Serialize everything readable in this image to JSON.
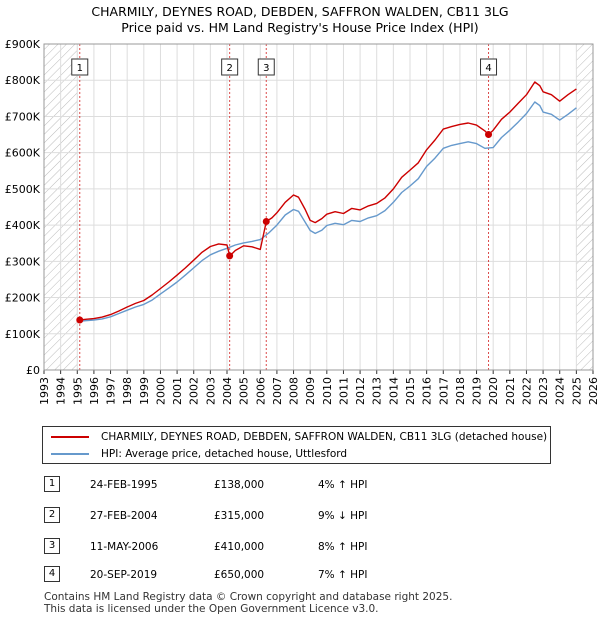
{
  "title_line1": "CHARMILY, DEYNES ROAD, DEBDEN, SAFFRON WALDEN, CB11 3LG",
  "title_line2": "Price paid vs. HM Land Registry's House Price Index (HPI)",
  "chart_data": {
    "type": "line",
    "xlim": [
      1993,
      2026
    ],
    "ylim": [
      0,
      900000
    ],
    "x_ticks": [
      "1993",
      "1994",
      "1995",
      "1996",
      "1997",
      "1998",
      "1999",
      "2000",
      "2001",
      "2002",
      "2003",
      "2004",
      "2005",
      "2006",
      "2007",
      "2008",
      "2009",
      "2010",
      "2011",
      "2012",
      "2013",
      "2014",
      "2015",
      "2016",
      "2017",
      "2018",
      "2019",
      "2020",
      "2021",
      "2022",
      "2023",
      "2024",
      "2025",
      "2026"
    ],
    "y_ticks": [
      {
        "value": 0,
        "label": "£0"
      },
      {
        "value": 100000,
        "label": "£100K"
      },
      {
        "value": 200000,
        "label": "£200K"
      },
      {
        "value": 300000,
        "label": "£300K"
      },
      {
        "value": 400000,
        "label": "£400K"
      },
      {
        "value": 500000,
        "label": "£500K"
      },
      {
        "value": 600000,
        "label": "£600K"
      },
      {
        "value": 700000,
        "label": "£700K"
      },
      {
        "value": 800000,
        "label": "£800K"
      },
      {
        "value": 900000,
        "label": "£900K"
      }
    ],
    "hatch_before": 1995.0,
    "hatch_after": 2025.0,
    "series": [
      {
        "name": "CHARMILY, DEYNES ROAD, DEBDEN, SAFFRON WALDEN, CB11 3LG (detached house)",
        "color": "#cc0000",
        "points": [
          [
            1995.15,
            138000
          ],
          [
            1995.5,
            140000
          ],
          [
            1996.0,
            142000
          ],
          [
            1996.5,
            146000
          ],
          [
            1997.0,
            153000
          ],
          [
            1997.5,
            163000
          ],
          [
            1998.0,
            174000
          ],
          [
            1998.5,
            184000
          ],
          [
            1999.0,
            192000
          ],
          [
            1999.5,
            207000
          ],
          [
            2000.0,
            225000
          ],
          [
            2000.5,
            243000
          ],
          [
            2001.0,
            262000
          ],
          [
            2001.5,
            282000
          ],
          [
            2002.0,
            303000
          ],
          [
            2002.5,
            325000
          ],
          [
            2003.0,
            341000
          ],
          [
            2003.5,
            348000
          ],
          [
            2004.0,
            345000
          ],
          [
            2004.17,
            315000
          ],
          [
            2004.5,
            330000
          ],
          [
            2005.0,
            343000
          ],
          [
            2005.5,
            340000
          ],
          [
            2006.0,
            333000
          ],
          [
            2006.36,
            410000
          ],
          [
            2006.7,
            420000
          ],
          [
            2007.0,
            434000
          ],
          [
            2007.5,
            463000
          ],
          [
            2008.0,
            483000
          ],
          [
            2008.3,
            477000
          ],
          [
            2008.7,
            443000
          ],
          [
            2009.0,
            413000
          ],
          [
            2009.3,
            407000
          ],
          [
            2009.7,
            418000
          ],
          [
            2010.0,
            430000
          ],
          [
            2010.5,
            437000
          ],
          [
            2011.0,
            432000
          ],
          [
            2011.5,
            446000
          ],
          [
            2012.0,
            442000
          ],
          [
            2012.5,
            453000
          ],
          [
            2013.0,
            460000
          ],
          [
            2013.5,
            475000
          ],
          [
            2014.0,
            500000
          ],
          [
            2014.5,
            532000
          ],
          [
            2015.0,
            552000
          ],
          [
            2015.5,
            572000
          ],
          [
            2016.0,
            608000
          ],
          [
            2016.5,
            635000
          ],
          [
            2017.0,
            665000
          ],
          [
            2017.5,
            672000
          ],
          [
            2018.0,
            678000
          ],
          [
            2018.5,
            682000
          ],
          [
            2019.0,
            676000
          ],
          [
            2019.5,
            660000
          ],
          [
            2019.72,
            650000
          ],
          [
            2020.0,
            662000
          ],
          [
            2020.5,
            692000
          ],
          [
            2021.0,
            712000
          ],
          [
            2021.5,
            736000
          ],
          [
            2022.0,
            760000
          ],
          [
            2022.5,
            795000
          ],
          [
            2022.8,
            785000
          ],
          [
            2023.0,
            768000
          ],
          [
            2023.5,
            760000
          ],
          [
            2024.0,
            742000
          ],
          [
            2024.5,
            760000
          ],
          [
            2025.0,
            776000
          ]
        ]
      },
      {
        "name": "HPI: Average price, detached house, Uttlesford",
        "color": "#6699cc",
        "points": [
          [
            1995.0,
            134000
          ],
          [
            1995.5,
            136000
          ],
          [
            1996.0,
            138000
          ],
          [
            1996.5,
            141000
          ],
          [
            1997.0,
            147000
          ],
          [
            1997.5,
            156000
          ],
          [
            1998.0,
            165000
          ],
          [
            1998.5,
            174000
          ],
          [
            1999.0,
            181000
          ],
          [
            1999.5,
            193000
          ],
          [
            2000.0,
            210000
          ],
          [
            2000.5,
            226000
          ],
          [
            2001.0,
            243000
          ],
          [
            2001.5,
            262000
          ],
          [
            2002.0,
            282000
          ],
          [
            2002.5,
            302000
          ],
          [
            2003.0,
            318000
          ],
          [
            2003.5,
            328000
          ],
          [
            2004.0,
            336000
          ],
          [
            2004.5,
            345000
          ],
          [
            2005.0,
            351000
          ],
          [
            2005.5,
            355000
          ],
          [
            2006.0,
            360000
          ],
          [
            2006.5,
            378000
          ],
          [
            2007.0,
            400000
          ],
          [
            2007.5,
            428000
          ],
          [
            2008.0,
            443000
          ],
          [
            2008.3,
            438000
          ],
          [
            2008.7,
            408000
          ],
          [
            2009.0,
            385000
          ],
          [
            2009.3,
            377000
          ],
          [
            2009.7,
            386000
          ],
          [
            2010.0,
            399000
          ],
          [
            2010.5,
            405000
          ],
          [
            2011.0,
            401000
          ],
          [
            2011.5,
            413000
          ],
          [
            2012.0,
            410000
          ],
          [
            2012.5,
            420000
          ],
          [
            2013.0,
            426000
          ],
          [
            2013.5,
            440000
          ],
          [
            2014.0,
            463000
          ],
          [
            2014.5,
            490000
          ],
          [
            2015.0,
            508000
          ],
          [
            2015.5,
            528000
          ],
          [
            2016.0,
            562000
          ],
          [
            2016.5,
            585000
          ],
          [
            2017.0,
            612000
          ],
          [
            2017.5,
            620000
          ],
          [
            2018.0,
            625000
          ],
          [
            2018.5,
            630000
          ],
          [
            2019.0,
            625000
          ],
          [
            2019.5,
            612000
          ],
          [
            2020.0,
            614000
          ],
          [
            2020.5,
            642000
          ],
          [
            2021.0,
            662000
          ],
          [
            2021.5,
            684000
          ],
          [
            2022.0,
            708000
          ],
          [
            2022.5,
            740000
          ],
          [
            2022.8,
            730000
          ],
          [
            2023.0,
            712000
          ],
          [
            2023.5,
            706000
          ],
          [
            2024.0,
            690000
          ],
          [
            2024.5,
            706000
          ],
          [
            2025.0,
            724000
          ]
        ]
      }
    ],
    "sales": [
      {
        "marker": "1",
        "x": 1995.15,
        "price": 138000
      },
      {
        "marker": "2",
        "x": 2004.16,
        "price": 315000
      },
      {
        "marker": "3",
        "x": 2006.36,
        "price": 410000
      },
      {
        "marker": "4",
        "x": 2019.72,
        "price": 650000
      }
    ]
  },
  "legend": [
    {
      "label": "CHARMILY, DEYNES ROAD, DEBDEN, SAFFRON WALDEN, CB11 3LG (detached house)",
      "color": "#cc0000"
    },
    {
      "label": "HPI: Average price, detached house, Uttlesford",
      "color": "#6699cc"
    }
  ],
  "transactions": [
    {
      "marker": "1",
      "date": "24-FEB-1995",
      "price": "£138,000",
      "hpi": "4% ↑ HPI"
    },
    {
      "marker": "2",
      "date": "27-FEB-2004",
      "price": "£315,000",
      "hpi": "9% ↓ HPI"
    },
    {
      "marker": "3",
      "date": "11-MAY-2006",
      "price": "£410,000",
      "hpi": "8% ↑ HPI"
    },
    {
      "marker": "4",
      "date": "20-SEP-2019",
      "price": "£650,000",
      "hpi": "7% ↑ HPI"
    }
  ],
  "footer_line1": "Contains HM Land Registry data © Crown copyright and database right 2025.",
  "footer_line2": "This data is licensed under the Open Government Licence v3.0."
}
